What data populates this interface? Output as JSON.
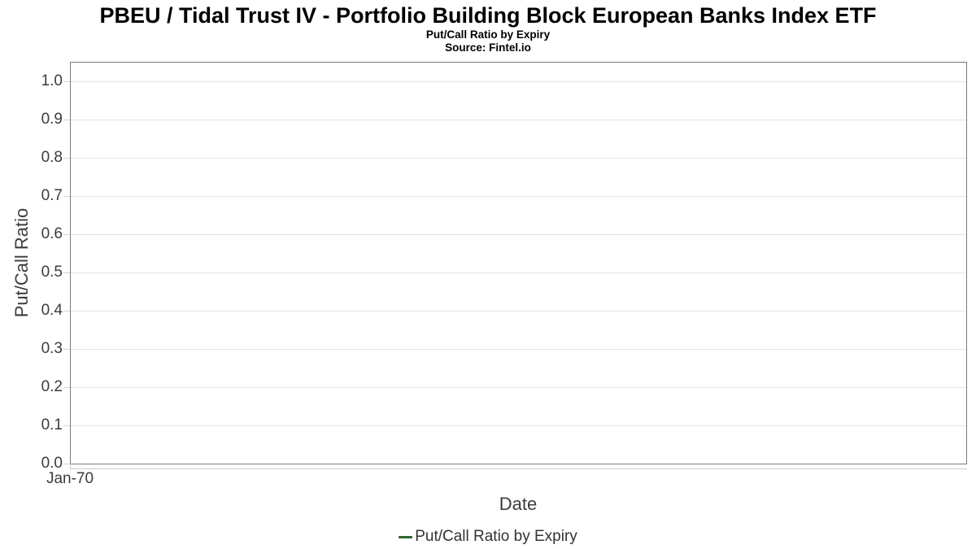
{
  "chart_data": {
    "type": "line",
    "title": "PBEU / Tidal Trust IV - Portfolio Building Block European Banks Index ETF",
    "subtitle": "Put/Call Ratio by Expiry",
    "source": "Source: Fintel.io",
    "xlabel": "Date",
    "ylabel": "Put/Call Ratio",
    "x_ticks": [
      "Jan-70"
    ],
    "y_ticks": [
      0.0,
      0.1,
      0.2,
      0.3,
      0.4,
      0.5,
      0.6,
      0.7,
      0.8,
      0.9,
      1.0
    ],
    "ylim": [
      0,
      1.05
    ],
    "grid": true,
    "legend": {
      "position": "bottom",
      "entries": [
        {
          "label": "Put/Call Ratio by Expiry",
          "color": "#2d652d"
        }
      ]
    },
    "series": [
      {
        "name": "Put/Call Ratio by Expiry",
        "color": "#2d652d",
        "x": [],
        "y": []
      }
    ]
  },
  "colors": {
    "background": "#ffffff",
    "grid": "#e3e3e3",
    "plot_border": "#7a7a7a",
    "tick": "#d4d4d4",
    "axis_line": "#cfcfcf",
    "tick_label": "#3c3c3c",
    "axis_title": "#3c3c3c",
    "legend_text": "#333333",
    "title_text": "#000000"
  }
}
